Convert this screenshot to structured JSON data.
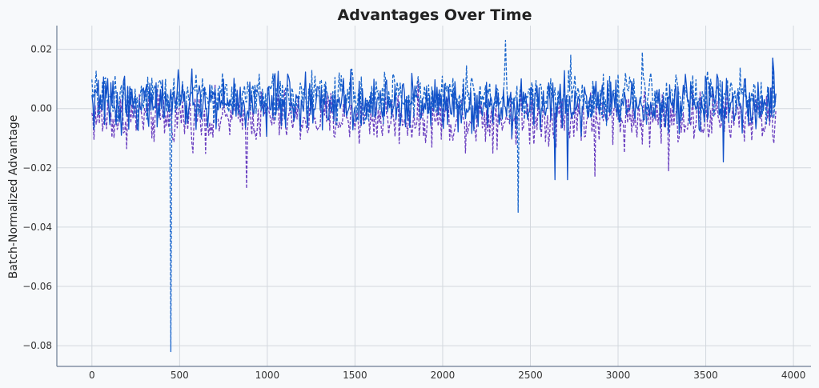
{
  "chart_data": {
    "type": "line",
    "title": "Advantages Over Time",
    "xlabel": "",
    "ylabel": "Batch-Normalized Advantage",
    "xlim": [
      -200,
      4100
    ],
    "ylim": [
      -0.087,
      0.028
    ],
    "x_ticks": [
      0,
      500,
      1000,
      1500,
      2000,
      2500,
      3000,
      3500,
      4000
    ],
    "x_tick_labels": [
      "0",
      "500",
      "1000",
      "1500",
      "2000",
      "2500",
      "3000",
      "3500",
      "4000"
    ],
    "y_ticks": [
      0.02,
      0.0,
      -0.02,
      -0.04,
      -0.06,
      -0.08
    ],
    "y_tick_labels": [
      "0.02",
      "0.00",
      "−0.02",
      "−0.04",
      "−0.06",
      "−0.08"
    ],
    "grid": true,
    "x_range": [
      0,
      3900
    ],
    "series": [
      {
        "color": "#6a3fc0",
        "dash": "dashed",
        "center": -0.003,
        "spread": 0.0045,
        "spikes": [
          [
            880,
            -0.027
          ],
          [
            2870,
            -0.023
          ],
          [
            3290,
            -0.021
          ]
        ]
      },
      {
        "color": "#1a66cc",
        "dash": "dashed",
        "center": 0.004,
        "spread": 0.004,
        "spikes": [
          [
            447,
            -0.082
          ],
          [
            2430,
            -0.035
          ],
          [
            2360,
            0.023
          ],
          [
            3140,
            0.019
          ],
          [
            2730,
            0.018
          ],
          [
            3880,
            0.017
          ]
        ]
      },
      {
        "color": "#1050c8",
        "dash": "solid",
        "center": 0.002,
        "spread": 0.0045,
        "spikes": [
          [
            2640,
            -0.024
          ],
          [
            2710,
            -0.024
          ],
          [
            3600,
            -0.018
          ],
          [
            3880,
            0.017
          ]
        ]
      }
    ]
  }
}
